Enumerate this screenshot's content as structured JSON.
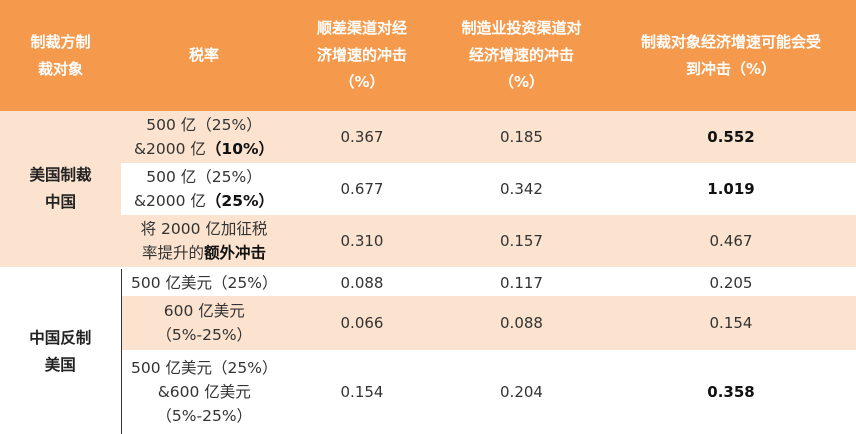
{
  "table": {
    "headers": [
      "制裁方制\n裁对象",
      "税率",
      "顺差渠道对经\n济增速的冲击\n（%）",
      "制造业投资渠道对\n经济增速的冲击\n（%）",
      "制裁对象经济增速可能会受\n到冲击（%）"
    ],
    "groups": [
      {
        "label": "美国制裁\n中国",
        "rows": [
          {
            "rate_prefix": "500 亿（25%）\n&2000 亿",
            "rate_bold": "（10%）",
            "trade": "0.367",
            "manufacturing": "0.185",
            "total": "0.552",
            "total_bold": true
          },
          {
            "rate_prefix": "500 亿（25%）\n&2000 亿",
            "rate_bold": "（25%）",
            "trade": "0.677",
            "manufacturing": "0.342",
            "total": "1.019",
            "total_bold": true
          },
          {
            "rate_prefix": "将 2000 亿加征税\n率提升的",
            "rate_bold": "额外冲击",
            "trade": "0.310",
            "manufacturing": "0.157",
            "total": "0.467",
            "total_bold": false
          }
        ]
      },
      {
        "label": "中国反制\n美国",
        "rows": [
          {
            "rate_prefix": "500 亿美元（25%）",
            "rate_bold": "",
            "trade": "0.088",
            "manufacturing": "0.117",
            "total": "0.205",
            "total_bold": false
          },
          {
            "rate_prefix": "600 亿美元\n（5%-25%）",
            "rate_bold": "",
            "trade": "0.066",
            "manufacturing": "0.088",
            "total": "0.154",
            "total_bold": false
          },
          {
            "rate_prefix": "500 亿美元（25%）\n&600 亿美元\n（5%-25%）",
            "rate_bold": "",
            "trade": "0.154",
            "manufacturing": "0.204",
            "total": "0.358",
            "total_bold": true
          }
        ]
      }
    ]
  },
  "colors": {
    "header_bg": "#f59a4c",
    "band_bg": "#fbe3cf",
    "white": "#ffffff"
  }
}
